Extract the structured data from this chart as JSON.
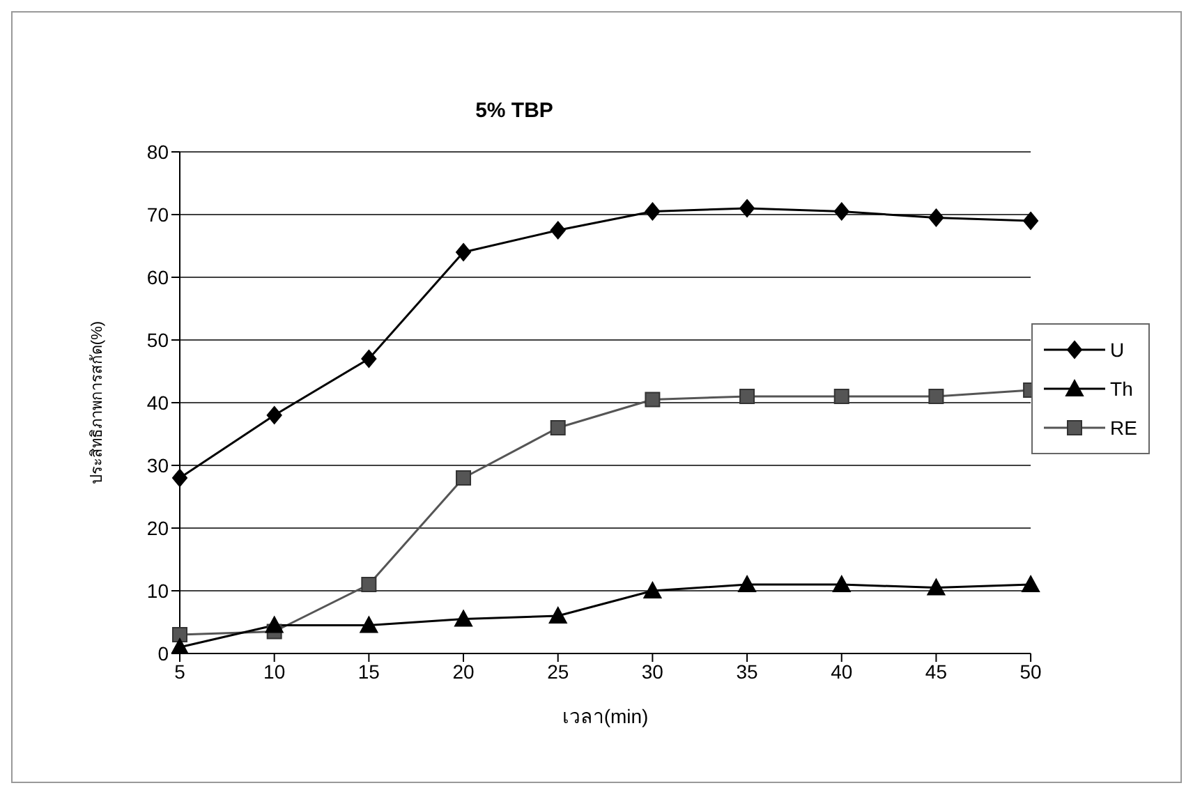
{
  "chart_data": {
    "type": "line",
    "title": "5% TBP",
    "xlabel": "เวลา(min)",
    "ylabel": "ประสิทธิภาพการสกัด(%)",
    "categories": [
      "5",
      "10",
      "15",
      "20",
      "25",
      "30",
      "35",
      "40",
      "45",
      "50"
    ],
    "series": [
      {
        "name": "U",
        "color": "#000000",
        "marker": "diamond",
        "values": [
          28,
          38,
          47,
          64,
          67.5,
          70.5,
          71,
          70.5,
          69.5,
          69
        ]
      },
      {
        "name": "Th",
        "color": "#000000",
        "marker": "triangle",
        "values": [
          1,
          4.5,
          4.5,
          5.5,
          6,
          10,
          11,
          11,
          10.5,
          11
        ]
      },
      {
        "name": "RE",
        "color": "#555555",
        "marker": "square",
        "values": [
          3,
          3.5,
          11,
          28,
          36,
          40.5,
          41,
          41,
          41,
          42
        ]
      }
    ],
    "ylim": [
      0,
      80
    ],
    "yticks": [
      0,
      10,
      20,
      30,
      40,
      50,
      60,
      70,
      80
    ],
    "grid": "y",
    "legend": "right"
  }
}
